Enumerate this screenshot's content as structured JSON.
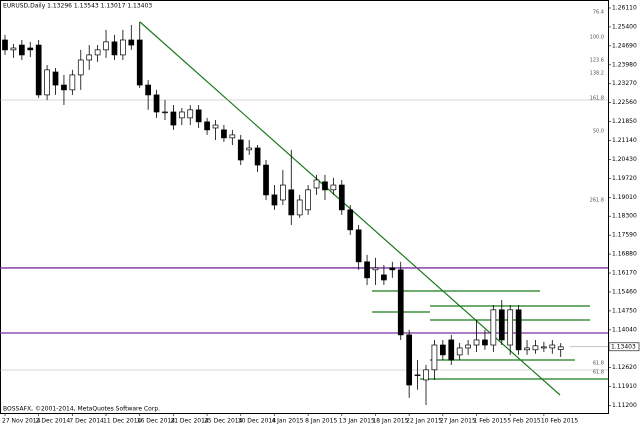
{
  "chart_data": {
    "type": "candlestick",
    "title": "EURUSD,Daily 1.13296 1.13543 1.13017 1.13403",
    "footer": "BOSSAFX, ©2001-2014, MetaQuotes Software Corp.",
    "categories": [
      "27 Nov 2014",
      null,
      null,
      null,
      "2 Dec 2014",
      null,
      null,
      null,
      "7 Dec 2014",
      null,
      null,
      null,
      "11 Dec 2014",
      null,
      null,
      null,
      "16 Dec 2014",
      null,
      null,
      null,
      "21 Dec 2014",
      null,
      null,
      null,
      "25 Dec 2014",
      null,
      null,
      null,
      "30 Dec 2014",
      null,
      null,
      null,
      "4 Jan 2015",
      null,
      null,
      null,
      "8 Jan 2015",
      null,
      null,
      null,
      "13 Jan 2015",
      null,
      null,
      null,
      "18 Jan 2015",
      null,
      null,
      null,
      "22 Jan 2015",
      null,
      null,
      null,
      "27 Jan 2015",
      null,
      null,
      null,
      "1 Feb 2015",
      null,
      null,
      null,
      "5 Feb 2015",
      null,
      null,
      null,
      "10 Feb 2015",
      null,
      null
    ],
    "open": [
      1.2491,
      1.2454,
      1.2472,
      1.2461,
      1.2472,
      1.2285,
      1.2371,
      1.2322,
      1.2304,
      1.236,
      1.2416,
      1.2435,
      1.2454,
      1.2484,
      1.2435,
      1.2491,
      1.2491,
      1.2322,
      1.2285,
      1.2221,
      1.2221,
      1.2199,
      1.2199,
      1.2229,
      1.2184,
      1.2161,
      1.2154,
      1.2124,
      1.2116,
      1.2079,
      1.2086,
      1.2022,
      1.191,
      1.1891,
      1.1929,
      1.1835,
      1.1854,
      1.1936,
      1.1959,
      1.1929,
      1.1947,
      1.1854,
      1.1779,
      1.1659,
      1.1629,
      1.161,
      1.1636,
      1.1629,
      1.1385,
      1.1235,
      1.1216,
      1.1254,
      1.1347,
      1.1366,
      1.131,
      1.1336,
      1.1347,
      1.1366,
      1.1347,
      1.1479,
      1.1347,
      1.1479,
      1.1329,
      1.1329,
      1.1336,
      1.1336,
      1.133
    ],
    "high": [
      1.251,
      1.2476,
      1.2491,
      1.2484,
      1.2491,
      1.2397,
      1.2386,
      1.236,
      1.2379,
      1.2454,
      1.2472,
      1.2472,
      1.2529,
      1.251,
      1.2529,
      1.2547,
      1.2559,
      1.2341,
      1.2304,
      1.2266,
      1.2247,
      1.2236,
      1.2247,
      1.2247,
      1.2199,
      1.2191,
      1.2172,
      1.2154,
      1.2135,
      1.2116,
      1.2097,
      1.2041,
      1.1947,
      1.2004,
      1.2079,
      1.191,
      1.1947,
      1.1985,
      1.1985,
      1.1974,
      1.1966,
      1.1872,
      1.1797,
      1.1685,
      1.1674,
      1.1647,
      1.1659,
      1.1659,
      1.1404,
      1.1291,
      1.1272,
      1.1366,
      1.1366,
      1.1385,
      1.1355,
      1.1366,
      1.1441,
      1.1404,
      1.1497,
      1.1516,
      1.1497,
      1.1497,
      1.1366,
      1.1366,
      1.1359,
      1.1366,
      1.1354
    ],
    "low": [
      1.2435,
      1.2424,
      1.2416,
      1.2427,
      1.2274,
      1.2266,
      1.2285,
      1.2247,
      1.2285,
      1.2304,
      1.2379,
      1.2409,
      1.2424,
      1.2416,
      1.2416,
      1.2454,
      1.2311,
      1.2229,
      1.2199,
      1.2191,
      1.2154,
      1.2172,
      1.2172,
      1.2161,
      1.2135,
      1.2116,
      1.2109,
      1.2097,
      1.2022,
      1.206,
      1.1996,
      1.1891,
      1.1854,
      1.1872,
      1.1797,
      1.1824,
      1.1835,
      1.191,
      1.1891,
      1.191,
      1.1835,
      1.176,
      1.1629,
      1.1572,
      1.1572,
      1.1572,
      1.1599,
      1.1366,
      1.1149,
      1.1179,
      1.1122,
      1.1216,
      1.1291,
      1.1272,
      1.1291,
      1.131,
      1.1321,
      1.1329,
      1.1321,
      1.1347,
      1.131,
      1.131,
      1.131,
      1.1314,
      1.1321,
      1.1314,
      1.1302
    ],
    "close": [
      1.2454,
      1.2461,
      1.2435,
      1.2454,
      1.2285,
      1.2379,
      1.2322,
      1.2304,
      1.236,
      1.2416,
      1.2435,
      1.2454,
      1.2484,
      1.2435,
      1.2491,
      1.2472,
      1.2322,
      1.2285,
      1.2221,
      1.2221,
      1.2172,
      1.2221,
      1.2229,
      1.2184,
      1.2154,
      1.2172,
      1.2124,
      1.2135,
      1.2041,
      1.2086,
      1.2022,
      1.191,
      1.1872,
      1.1947,
      1.1835,
      1.1891,
      1.1929,
      1.1966,
      1.1929,
      1.1947,
      1.1854,
      1.1779,
      1.1659,
      1.1599,
      1.1636,
      1.1591,
      1.1629,
      1.1385,
      1.1197,
      1.1235,
      1.1254,
      1.1347,
      1.131,
      1.1291,
      1.1336,
      1.1347,
      1.1366,
      1.1347,
      1.1479,
      1.1366,
      1.1479,
      1.1329,
      1.1336,
      1.1344,
      1.134,
      1.1347,
      1.134
    ],
    "ylim": [
      1.1092,
      1.2641
    ],
    "yticks": [
      {
        "value": 1.2611,
        "label": "1.26110"
      },
      {
        "value": 1.254,
        "label": "1.25400"
      },
      {
        "value": 1.2469,
        "label": "1.24690"
      },
      {
        "value": 1.2398,
        "label": "1.23980"
      },
      {
        "value": 1.2327,
        "label": "1.23270"
      },
      {
        "value": 1.2256,
        "label": "1.22560"
      },
      {
        "value": 1.2185,
        "label": "1.21850"
      },
      {
        "value": 1.2114,
        "label": "1.21140"
      },
      {
        "value": 1.2043,
        "label": "1.20430"
      },
      {
        "value": 1.1972,
        "label": "1.19720"
      },
      {
        "value": 1.1901,
        "label": "1.19010"
      },
      {
        "value": 1.183,
        "label": "1.18300"
      },
      {
        "value": 1.1759,
        "label": "1.17590"
      },
      {
        "value": 1.1688,
        "label": "1.16880"
      },
      {
        "value": 1.1617,
        "label": "1.16170"
      },
      {
        "value": 1.1546,
        "label": "1.15460"
      },
      {
        "value": 1.1475,
        "label": "1.14750"
      },
      {
        "value": 1.1404,
        "label": "1.14040"
      },
      {
        "value": 1.1262,
        "label": "1.12620"
      },
      {
        "value": 1.1191,
        "label": "1.11910"
      },
      {
        "value": 1.112,
        "label": "1.11200"
      }
    ],
    "last_price": {
      "value": 1.13403,
      "label": "1.13403"
    },
    "levels": [
      {
        "value": 1.1636,
        "color": "#7a2ea0"
      },
      {
        "value": 1.1392,
        "color": "#7a2ea0"
      }
    ],
    "annotations": [
      "76.4",
      "100.0",
      "123.6",
      "138.2",
      "161.8",
      "50.0",
      "261.8",
      "61.8",
      "61.8"
    ],
    "up_color": "#ffffff",
    "down_color": "#000000",
    "grid": false
  }
}
